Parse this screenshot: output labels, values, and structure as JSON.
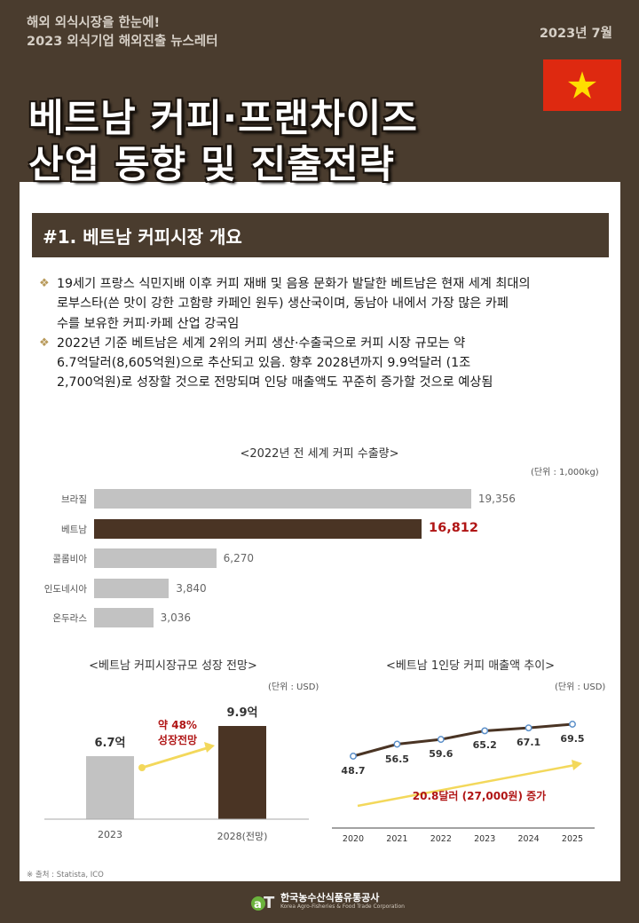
{
  "header": {
    "subtitle_line1": "해외 외식시장을 한눈에!",
    "subtitle_line2": "2023 외식기업 해외진출 뉴스레터",
    "date": "2023년 7월",
    "flag": "vietnam-flag",
    "title_line1": "베트남 커피·프랜차이즈",
    "title_line2": "산업 동향 및 진출전략"
  },
  "section": {
    "heading": "#1. 베트남 커피시장 개요",
    "bullets": [
      {
        "line1": "19세기 프랑스 식민지배 이후 커피 재배 및 음용 문화가 발달한 베트남은 현재 세계 최대의",
        "line2": "로부스타(쓴 맛이 강한 고함량 카페인 원두) 생산국이며, 동남아 내에서 가장 많은 카페",
        "line3": "수를 보유한 커피·카페 산업 강국임"
      },
      {
        "line1": "2022년 기준 베트남은 세계 2위의 커피 생산·수출국으로 커피 시장 규모는 약",
        "line2": "6.7억달러(8,605억원)으로 추산되고 있음. 향후 2028년까지 9.9억달러 (1조",
        "line3": "2,700억원)로 성장할 것으로 전망되며 인당 매출액도 꾸준히 증가할 것으로 예상됨"
      }
    ]
  },
  "chart_data": [
    {
      "type": "bar",
      "orientation": "horizontal",
      "title": "<2022년 전 세계 커피 수출량>",
      "unit": "(단위 : 1,000kg)",
      "categories": [
        "브라질",
        "베트남",
        "콜롬비아",
        "인도네시아",
        "온두라스"
      ],
      "values": [
        19356,
        16812,
        6270,
        3840,
        3036
      ],
      "value_labels": [
        "19,356",
        "16,812",
        "6,270",
        "3,840",
        "3,036"
      ],
      "highlight": "베트남",
      "colors": {
        "default": "#c2c2c2",
        "highlight": "#4a3424",
        "highlight_label": "#b01515"
      },
      "xlim": [
        0,
        20000
      ]
    },
    {
      "type": "bar",
      "title": "<베트남 커피시장규모 성장 전망>",
      "unit": "(단위 : USD)",
      "categories": [
        "2023",
        "2028(전망)"
      ],
      "values": [
        6.7,
        9.9
      ],
      "value_labels": [
        "6.7억",
        "9.9억"
      ],
      "annotation_line1": "약 48%",
      "annotation_line2": "성장전망",
      "colors": [
        "#c2c2c2",
        "#4a3424"
      ],
      "ylim": [
        0,
        11
      ]
    },
    {
      "type": "line",
      "title": "<베트남 1인당 커피 매출액 추이>",
      "unit": "(단위 : USD)",
      "x": [
        "2020",
        "2021",
        "2022",
        "2023",
        "2024",
        "2025"
      ],
      "values": [
        48.7,
        56.5,
        59.6,
        65.2,
        67.1,
        69.5
      ],
      "value_labels": [
        "48.7",
        "56.5",
        "59.6",
        "65.2",
        "67.1",
        "69.5"
      ],
      "annotation": "20.8달러 (27,000원) 증가",
      "colors": {
        "line": "#4a3424",
        "marker": "#5b8fc9",
        "arrow": "#f3d85b"
      },
      "ylim": [
        40,
        75
      ]
    }
  ],
  "footer": {
    "source": "※ 출처 : Statista, ICO",
    "logo_name": "한국농수산식품유통공사",
    "logo_en": "Korea Agro-Fisheries & Food Trade Corporation"
  }
}
